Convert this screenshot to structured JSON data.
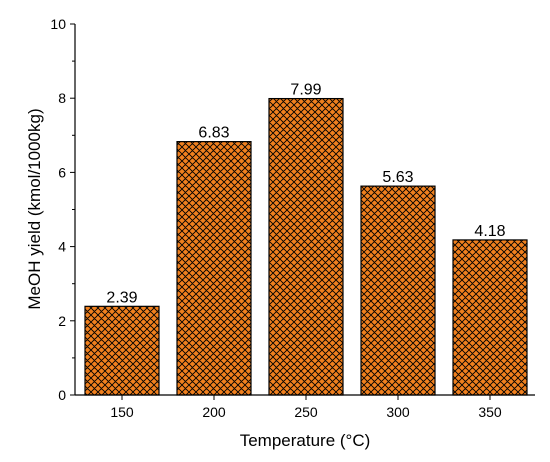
{
  "chart_data": {
    "type": "bar",
    "categories": [
      "150",
      "200",
      "250",
      "300",
      "350"
    ],
    "values": [
      2.39,
      6.83,
      7.99,
      5.63,
      4.18
    ],
    "data_labels": [
      "2.39",
      "6.83",
      "7.99",
      "5.63",
      "4.18"
    ],
    "title": "",
    "xlabel": "Temperature (°C)",
    "ylabel": "MeOH yield (kmol/1000kg)",
    "ylim": [
      0,
      10
    ],
    "yticks": [
      "0",
      "2",
      "4",
      "6",
      "8",
      "10"
    ],
    "grid": false,
    "legend": "none",
    "bar_fill": "#F0801E",
    "bar_pattern": "crosshatch",
    "pattern_color": "#000000"
  }
}
